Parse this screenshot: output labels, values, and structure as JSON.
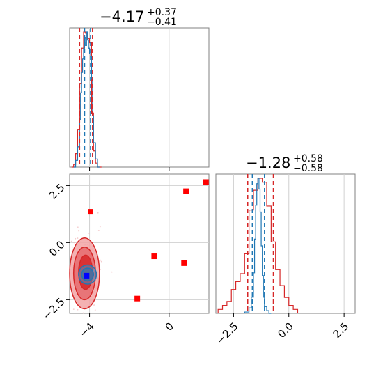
{
  "chart_data": {
    "type": "corner",
    "parameters": [
      {
        "title_value": "−4.17",
        "title_plus": "+0.37",
        "title_minus": "−0.41",
        "hist_xlim": [
          -5.0,
          2.0
        ],
        "hist_xticks": [
          -4,
          0
        ],
        "hist_xticklabels": [
          "−4",
          "0"
        ],
        "red_quantile_lines": [
          -4.5,
          -3.85
        ],
        "blue_quantile_lines": [
          -4.25,
          -3.95
        ],
        "red_hist": {
          "bin_edges": [
            -4.9,
            -4.8,
            -4.7,
            -4.6,
            -4.5,
            -4.4,
            -4.3,
            -4.2,
            -4.1,
            -4.0,
            -3.9,
            -3.8,
            -3.7,
            -3.6,
            -3.5,
            -3.4
          ],
          "counts": [
            0,
            2,
            10,
            28,
            62,
            88,
            100,
            99,
            95,
            92,
            40,
            12,
            3,
            0,
            0
          ]
        },
        "blue_hist": {
          "bin_edges": [
            -4.8,
            -4.7,
            -4.6,
            -4.5,
            -4.45,
            -4.4,
            -4.35,
            -4.3,
            -4.25,
            -4.2,
            -4.15,
            -4.1,
            -4.05,
            -4.0,
            -3.95,
            -3.9,
            -3.85,
            -3.8,
            -3.7,
            -3.6,
            -3.5
          ],
          "counts": [
            0,
            5,
            15,
            35,
            55,
            70,
            80,
            88,
            96,
            90,
            100,
            94,
            88,
            84,
            82,
            65,
            38,
            18,
            6,
            0
          ]
        }
      },
      {
        "title_value": "−1.28",
        "title_plus": "+0.58",
        "title_minus": "−0.58",
        "hist_xlim": [
          -3.3,
          3.0
        ],
        "hist_xticks": [
          -2.5,
          0.0,
          2.5
        ],
        "hist_xticklabels": [
          "−2.5",
          "0.0",
          "2.5"
        ],
        "red_quantile_lines": [
          -1.86,
          -0.7
        ],
        "blue_quantile_lines": [
          -1.65,
          -1.1
        ],
        "red_hist": {
          "bin_edges": [
            -3.2,
            -3.0,
            -2.8,
            -2.6,
            -2.4,
            -2.2,
            -2.0,
            -1.8,
            -1.6,
            -1.4,
            -1.2,
            -1.0,
            -0.8,
            -0.6,
            -0.4,
            -0.2,
            0.0,
            0.2,
            0.4
          ],
          "counts": [
            1,
            2,
            3,
            6,
            8,
            10,
            15,
            26,
            31,
            34,
            33,
            27,
            18,
            11,
            7,
            4,
            2,
            1
          ]
        },
        "blue_hist": {
          "bin_edges": [
            -2.0,
            -1.8,
            -1.7,
            -1.6,
            -1.55,
            -1.5,
            -1.45,
            -1.4,
            -1.35,
            -1.3,
            -1.25,
            -1.2,
            -1.15,
            -1.1,
            -1.0,
            -0.9,
            -0.8
          ],
          "counts": [
            1,
            4,
            12,
            30,
            55,
            80,
            96,
            100,
            92,
            75,
            50,
            28,
            12,
            5,
            2,
            0
          ]
        }
      }
    ],
    "joint": {
      "xlim": [
        -5.0,
        2.0
      ],
      "ylim": [
        -3.1,
        3.0
      ],
      "xticks": [
        -4,
        0
      ],
      "xticklabels": [
        "−4",
        "0"
      ],
      "yticks": [
        2.5,
        0.0,
        -2.5
      ],
      "yticklabels": [
        "2.5",
        "0.0",
        "−2.5"
      ],
      "red_contours": [
        {
          "center": [
            -4.25,
            -1.35
          ],
          "rx": 0.75,
          "ry": 1.55
        },
        {
          "center": [
            -4.25,
            -1.35
          ],
          "rx": 0.55,
          "ry": 1.15
        },
        {
          "center": [
            -4.2,
            -1.3
          ],
          "rx": 0.35,
          "ry": 0.75
        }
      ],
      "blue_contours": [
        {
          "center": [
            -4.1,
            -1.4
          ],
          "rx": 0.45,
          "ry": 0.42
        },
        {
          "center": [
            -4.1,
            -1.4
          ],
          "rx": 0.3,
          "ry": 0.28
        }
      ],
      "red_markers": [
        [
          -3.95,
          1.35
        ],
        [
          0.85,
          2.25
        ],
        [
          1.85,
          2.65
        ],
        [
          -0.75,
          -0.6
        ],
        [
          0.75,
          -0.9
        ],
        [
          -1.6,
          -2.45
        ]
      ],
      "blue_marker": [
        -4.15,
        -1.45
      ]
    },
    "colors": {
      "red": "#d62728",
      "red_fill_light": "#f2a3a4",
      "red_fill_mid": "#e56b6d",
      "blue": "#1f77b4",
      "marker_red": "#ff0000",
      "marker_blue": "#0000ff",
      "grid": "#d0d0d0",
      "axes_edge": "#808080"
    }
  }
}
